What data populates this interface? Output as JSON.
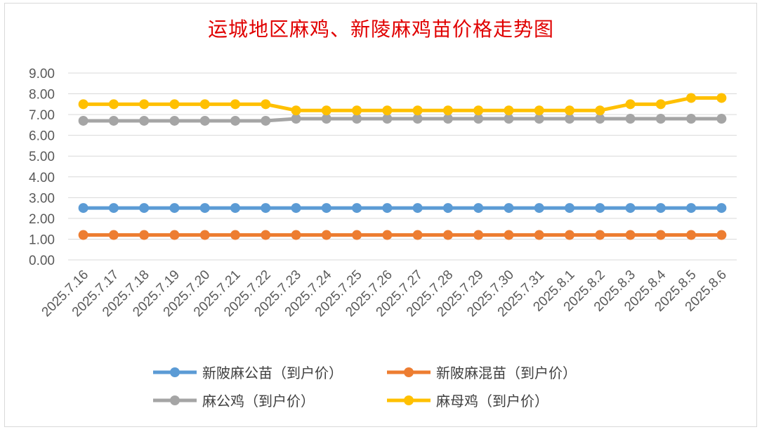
{
  "chart_data": {
    "type": "line",
    "title": "运城地区麻鸡、新陵麻鸡苗价格走势图",
    "xlabel": "",
    "ylabel": "",
    "categories": [
      "2025.7.16",
      "2025.7.17",
      "2025.7.18",
      "2025.7.19",
      "2025.7.20",
      "2025.7.21",
      "2025.7.22",
      "2025.7.23",
      "2025.7.24",
      "2025.7.25",
      "2025.7.26",
      "2025.7.27",
      "2025.7.28",
      "2025.7.29",
      "2025.7.30",
      "2025.7.31",
      "2025.8.1",
      "2025.8.2",
      "2025.8.3",
      "2025.8.4",
      "2025.8.5",
      "2025.8.6"
    ],
    "yticks": [
      "0.00",
      "1.00",
      "2.00",
      "3.00",
      "4.00",
      "5.00",
      "6.00",
      "7.00",
      "8.00",
      "9.00"
    ],
    "ylim": [
      0,
      9
    ],
    "grid": true,
    "legend_position": "bottom",
    "series": [
      {
        "name": "新陂麻公苗（到户价）",
        "color": "#5b9bd5",
        "values": [
          2.5,
          2.5,
          2.5,
          2.5,
          2.5,
          2.5,
          2.5,
          2.5,
          2.5,
          2.5,
          2.5,
          2.5,
          2.5,
          2.5,
          2.5,
          2.5,
          2.5,
          2.5,
          2.5,
          2.5,
          2.5,
          2.5
        ]
      },
      {
        "name": "新陂麻混苗（到户价）",
        "color": "#ed7d31",
        "values": [
          1.2,
          1.2,
          1.2,
          1.2,
          1.2,
          1.2,
          1.2,
          1.2,
          1.2,
          1.2,
          1.2,
          1.2,
          1.2,
          1.2,
          1.2,
          1.2,
          1.2,
          1.2,
          1.2,
          1.2,
          1.2,
          1.2
        ]
      },
      {
        "name": "麻公鸡（到户价）",
        "color": "#a5a5a5",
        "values": [
          6.7,
          6.7,
          6.7,
          6.7,
          6.7,
          6.7,
          6.7,
          6.8,
          6.8,
          6.8,
          6.8,
          6.8,
          6.8,
          6.8,
          6.8,
          6.8,
          6.8,
          6.8,
          6.8,
          6.8,
          6.8,
          6.8
        ]
      },
      {
        "name": "麻母鸡（到户价）",
        "color": "#ffc000",
        "values": [
          7.5,
          7.5,
          7.5,
          7.5,
          7.5,
          7.5,
          7.5,
          7.2,
          7.2,
          7.2,
          7.2,
          7.2,
          7.2,
          7.2,
          7.2,
          7.2,
          7.2,
          7.2,
          7.5,
          7.5,
          7.8,
          7.8
        ]
      }
    ]
  }
}
